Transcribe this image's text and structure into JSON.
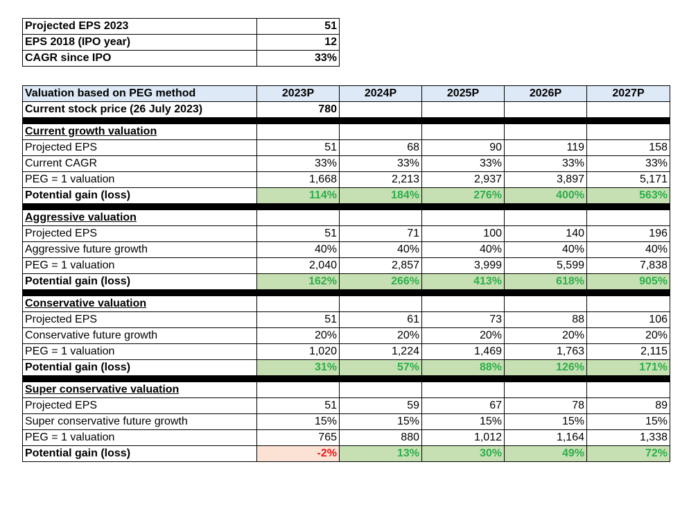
{
  "summary": [
    {
      "label": "Projected EPS 2023",
      "value": "51"
    },
    {
      "label": "EPS 2018 (IPO year)",
      "value": "12"
    },
    {
      "label": "CAGR since IPO",
      "value": "33%"
    }
  ],
  "header": {
    "label": "Valuation based on PEG method",
    "years": [
      "2023P",
      "2024P",
      "2025P",
      "2026P",
      "2027P"
    ]
  },
  "price_row": {
    "label": "Current stock price (26 July 2023)",
    "value": "780"
  },
  "sections": [
    {
      "title": "Current growth valuation",
      "rows": [
        {
          "label": "Projected EPS",
          "values": [
            "51",
            "68",
            "90",
            "119",
            "158"
          ]
        },
        {
          "label": "Current CAGR",
          "values": [
            "33%",
            "33%",
            "33%",
            "33%",
            "33%"
          ]
        },
        {
          "label": "PEG = 1 valuation",
          "values": [
            "1,668",
            "2,213",
            "2,937",
            "3,897",
            "5,171"
          ]
        }
      ],
      "gain": {
        "label": "Potential gain (loss)",
        "values": [
          "114%",
          "184%",
          "276%",
          "400%",
          "563%"
        ]
      }
    },
    {
      "title": "Aggressive valuation",
      "rows": [
        {
          "label": "Projected EPS",
          "values": [
            "51",
            "71",
            "100",
            "140",
            "196"
          ]
        },
        {
          "label": "Aggressive future growth",
          "values": [
            "40%",
            "40%",
            "40%",
            "40%",
            "40%"
          ]
        },
        {
          "label": "PEG = 1 valuation",
          "values": [
            "2,040",
            "2,857",
            "3,999",
            "5,599",
            "7,838"
          ]
        }
      ],
      "gain": {
        "label": "Potential gain (loss)",
        "values": [
          "162%",
          "266%",
          "413%",
          "618%",
          "905%"
        ]
      }
    },
    {
      "title": "Conservative valuation",
      "rows": [
        {
          "label": "Projected EPS",
          "values": [
            "51",
            "61",
            "73",
            "88",
            "106"
          ]
        },
        {
          "label": "Conservative future growth",
          "values": [
            "20%",
            "20%",
            "20%",
            "20%",
            "20%"
          ]
        },
        {
          "label": "PEG = 1 valuation",
          "values": [
            "1,020",
            "1,224",
            "1,469",
            "1,763",
            "2,115"
          ]
        }
      ],
      "gain": {
        "label": "Potential gain (loss)",
        "values": [
          "31%",
          "57%",
          "88%",
          "126%",
          "171%"
        ]
      }
    },
    {
      "title": "Super conservative valuation",
      "rows": [
        {
          "label": "Projected EPS",
          "values": [
            "51",
            "59",
            "67",
            "78",
            "89"
          ]
        },
        {
          "label": "Super conservative future growth",
          "values": [
            "15%",
            "15%",
            "15%",
            "15%",
            "15%"
          ]
        },
        {
          "label": "PEG = 1 valuation",
          "values": [
            "765",
            "880",
            "1,012",
            "1,164",
            "1,338"
          ]
        }
      ],
      "gain": {
        "label": "Potential gain (loss)",
        "values": [
          "-2%",
          "13%",
          "30%",
          "49%",
          "72%"
        ]
      }
    }
  ],
  "colors": {
    "header_bg": "#dde9f6",
    "gain_bg": "#c6e0b4",
    "gain_text": "#2eae4a",
    "loss_bg": "#fbe2d5",
    "loss_text": "#e8161b"
  }
}
